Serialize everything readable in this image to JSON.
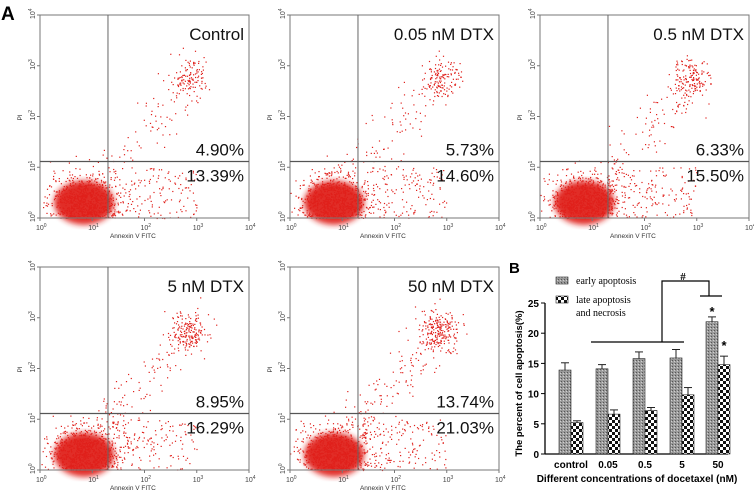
{
  "panel_labels": {
    "a": "A",
    "b": "B"
  },
  "chart_data": [
    {
      "type": "scatter",
      "subtype": "flow-cytometry-quadrant",
      "panels": [
        {
          "title": "Control",
          "upper_right_pct": "4.90%",
          "lower_right_pct": "13.39%"
        },
        {
          "title": "0.05 nM DTX",
          "upper_right_pct": "5.73%",
          "lower_right_pct": "14.60%"
        },
        {
          "title": "0.5 nM DTX",
          "upper_right_pct": "6.33%",
          "lower_right_pct": "15.50%"
        },
        {
          "title": "5 nM DTX",
          "upper_right_pct": "8.95%",
          "lower_right_pct": "16.29%"
        },
        {
          "title": "50 nM DTX",
          "upper_right_pct": "13.74%",
          "lower_right_pct": "21.03%"
        }
      ],
      "xlabel": "Annexin V FITC",
      "ylabel": "PI",
      "xscale": "log",
      "yscale": "log",
      "xlim": [
        1,
        10000
      ],
      "ylim": [
        1,
        10000
      ],
      "tick_labels": [
        "10^0",
        "10^1",
        "10^2",
        "10^3",
        "10^4"
      ],
      "gate_x": 20,
      "gate_y": 13,
      "point_color": "#e0201b"
    },
    {
      "type": "bar",
      "categories": [
        "control",
        "0.05",
        "0.5",
        "5",
        "50"
      ],
      "series": [
        {
          "name": "early apoptosis",
          "values": [
            13.9,
            14.1,
            15.8,
            15.9,
            21.9
          ],
          "errors": [
            1.2,
            0.7,
            1.1,
            1.4,
            0.8
          ],
          "pattern": "fine-gray"
        },
        {
          "name": "late apoptosis and necrosis",
          "values": [
            5.2,
            6.6,
            7.2,
            9.8,
            14.8
          ],
          "errors": [
            0.3,
            0.7,
            0.5,
            1.2,
            1.4
          ],
          "pattern": "checker"
        }
      ],
      "legend_lines": [
        [
          "early apoptosis"
        ],
        [
          "late apoptosis",
          "and necrosis"
        ]
      ],
      "xlabel": "Different concentrations of docetaxel (nM)",
      "ylabel": "The percent of cell apoptosis(%)",
      "ylim": [
        0,
        25
      ],
      "yticks": [
        "0",
        "5",
        "10",
        "15",
        "20",
        "25"
      ],
      "annotations": {
        "star_early_50": "*",
        "star_late_50": "*",
        "hash": "#"
      },
      "legend": "top-left"
    }
  ]
}
